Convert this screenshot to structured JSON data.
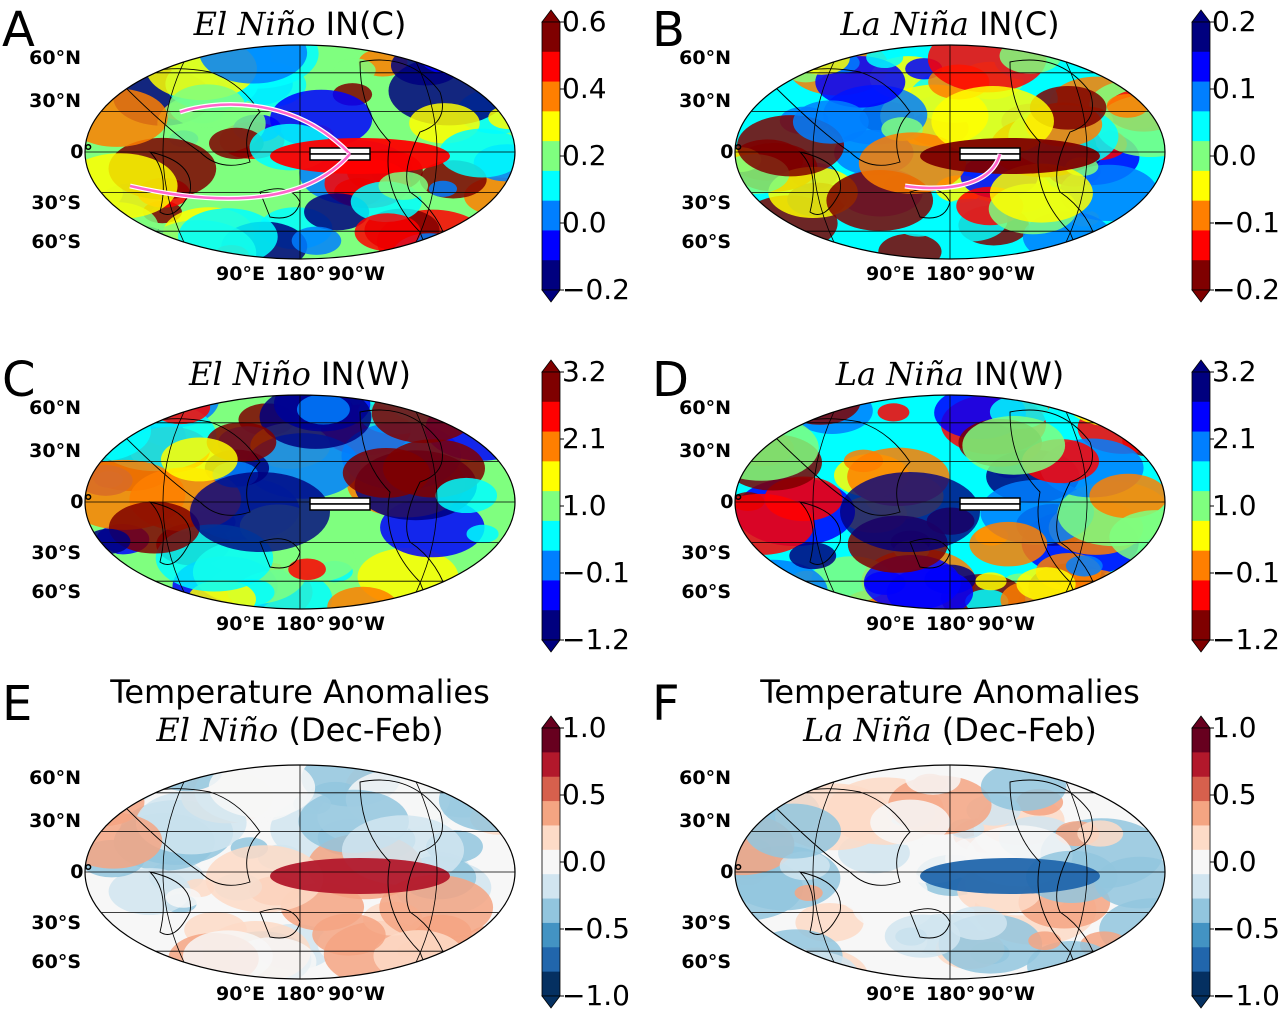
{
  "panels": [
    {
      "letter": "A",
      "title_italic": "El Niño",
      "title_rest": " IN(C)",
      "title_line2": "",
      "lat_labels": [
        "60°N",
        "30°N",
        "0°",
        "30°S",
        "60°S"
      ],
      "lon_labels": [
        "90°E",
        "180°",
        "90°W"
      ],
      "colorbar_ticks": [
        "0.6",
        "0.4",
        "0.2",
        "0.0",
        "−0.2"
      ],
      "colormap": "jet",
      "colormap_reversed": false
    },
    {
      "letter": "B",
      "title_italic": "La Niña",
      "title_rest": " IN(C)",
      "title_line2": "",
      "lat_labels": [
        "60°N",
        "30°N",
        "0°",
        "30°S",
        "60°S"
      ],
      "lon_labels": [
        "90°E",
        "180°",
        "90°W"
      ],
      "colorbar_ticks": [
        "0.2",
        "0.1",
        "0.0",
        "−0.1",
        "−0.2"
      ],
      "colormap": "jet",
      "colormap_reversed": true
    },
    {
      "letter": "C",
      "title_italic": "El Niño",
      "title_rest": " IN(W)",
      "title_line2": "",
      "lat_labels": [
        "60°N",
        "30°N",
        "0°",
        "30°S",
        "60°S"
      ],
      "lon_labels": [
        "90°E",
        "180°",
        "90°W"
      ],
      "colorbar_ticks": [
        "3.2",
        "2.1",
        "1.0",
        "−0.1",
        "−1.2"
      ],
      "colormap": "jet",
      "colormap_reversed": false
    },
    {
      "letter": "D",
      "title_italic": "La Niña",
      "title_rest": " IN(W)",
      "title_line2": "",
      "lat_labels": [
        "60°N",
        "30°N",
        "0°",
        "30°S",
        "60°S"
      ],
      "lon_labels": [
        "90°E",
        "180°",
        "90°W"
      ],
      "colorbar_ticks": [
        "3.2",
        "2.1",
        "1.0",
        "−0.1",
        "−1.2"
      ],
      "colormap": "jet",
      "colormap_reversed": true
    },
    {
      "letter": "E",
      "title_line1": "Temperature Anomalies",
      "title_italic": "El Niño",
      "title_rest": " (Dec-Feb)",
      "lat_labels": [
        "60°N",
        "30°N",
        "0°",
        "30°S",
        "60°S"
      ],
      "lon_labels": [
        "90°E",
        "180°",
        "90°W"
      ],
      "colorbar_ticks": [
        "1.0",
        "0.5",
        "0.0",
        "−0.5",
        "−1.0"
      ],
      "colormap": "RdBu_r",
      "colormap_reversed": false
    },
    {
      "letter": "F",
      "title_line1": "Temperature Anomalies",
      "title_italic": "La Niña",
      "title_rest": " (Dec-Feb)",
      "lat_labels": [
        "60°N",
        "30°N",
        "0°",
        "30°S",
        "60°S"
      ],
      "lon_labels": [
        "90°E",
        "180°",
        "90°W"
      ],
      "colorbar_ticks": [
        "1.0",
        "0.5",
        "0.0",
        "−0.5",
        "−1.0"
      ],
      "colormap": "RdBu_r",
      "colormap_reversed": false
    }
  ],
  "colors": {
    "jet": [
      "#00007f",
      "#0000ff",
      "#007fff",
      "#00ffff",
      "#7fff7f",
      "#ffff00",
      "#ff7f00",
      "#ff0000",
      "#7f0000"
    ],
    "rdbu": [
      "#053061",
      "#2166ac",
      "#4393c3",
      "#92c5de",
      "#d1e5f0",
      "#f7f7f7",
      "#fddbc7",
      "#f4a582",
      "#d6604d",
      "#b2182b",
      "#67001f"
    ],
    "arrow": "#ff66cc"
  }
}
